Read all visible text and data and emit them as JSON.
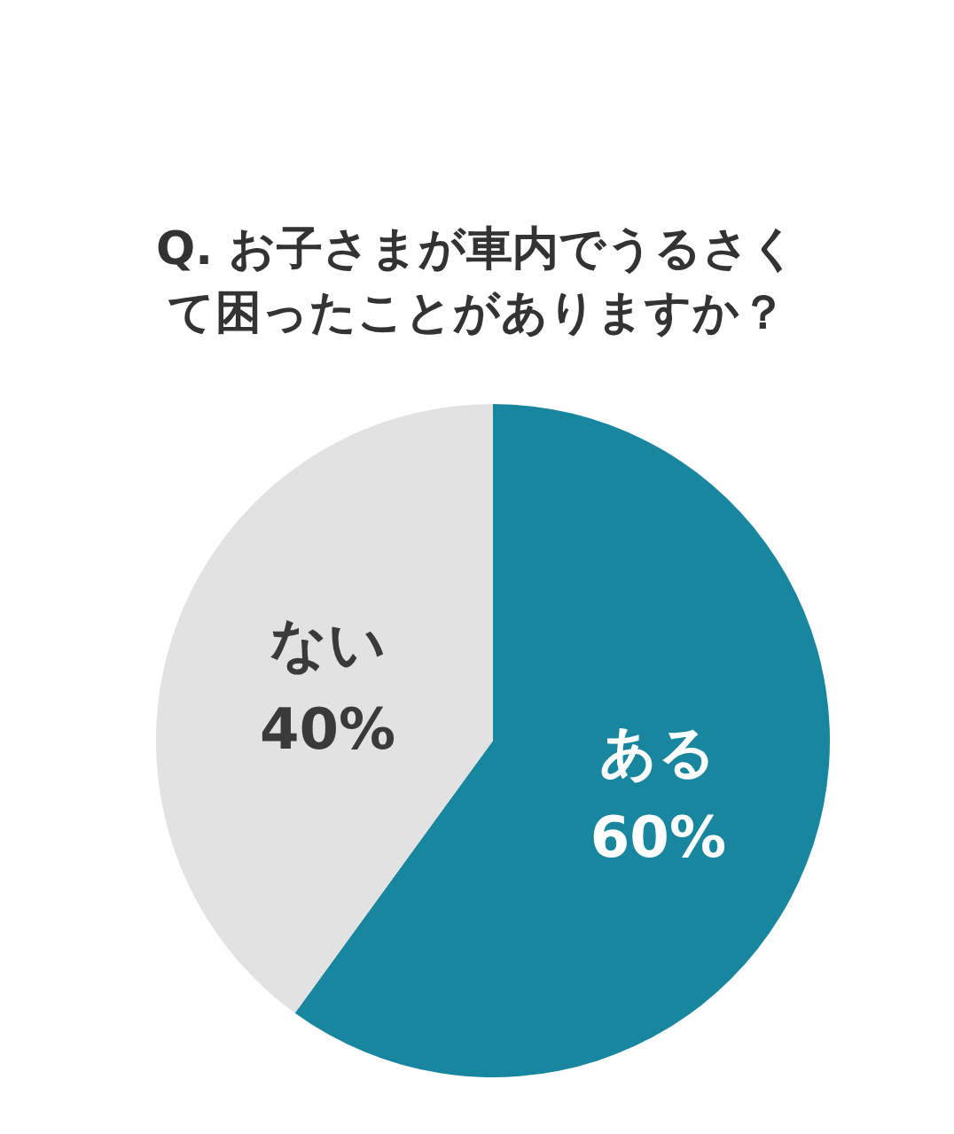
{
  "chart_data": {
    "type": "pie",
    "title": "Q. お子さまが車内でうるさくて困ったことがありますか？",
    "categories": [
      "ある",
      "ない"
    ],
    "values": [
      60,
      40
    ],
    "value_labels": [
      "60%",
      "40%"
    ],
    "colors": [
      "#18869e",
      "#e2e2e2"
    ],
    "legend": false
  }
}
